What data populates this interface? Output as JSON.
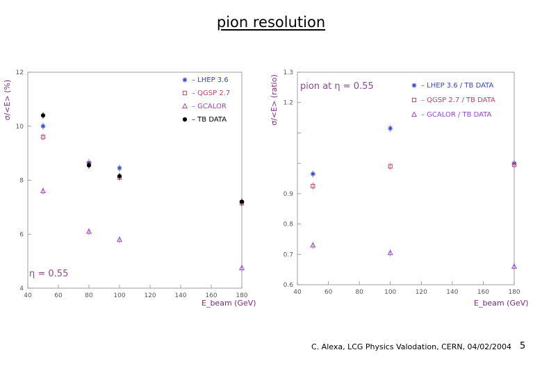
{
  "slide": {
    "title": "pion resolution",
    "footer": "C. Alexa, LCG Physics Valodation, CERN, 04/02/2004",
    "page_number": "5"
  },
  "colors": {
    "lhep": "#3344cc",
    "qgsp": "#bb4466",
    "gcalor": "#9944cc",
    "tb": "#000000",
    "axis": "#888888"
  },
  "chart_data": [
    {
      "type": "scatter",
      "title": "",
      "xlabel": "E_beam (GeV)",
      "ylabel": "σ/<E> (%)",
      "xlim": [
        40,
        180
      ],
      "ylim": [
        4,
        12
      ],
      "x_ticks": [
        "40",
        "60",
        "80",
        "100",
        "120",
        "140",
        "160",
        "180"
      ],
      "y_ticks": [
        "4",
        "6",
        "8",
        "10",
        "12"
      ],
      "grid": false,
      "legend_position": "top-right",
      "annotation": "η = 0.55",
      "series": [
        {
          "name": "* – LHEP 3.6",
          "marker": "star",
          "color_key": "lhep",
          "x": [
            50,
            80,
            100,
            180
          ],
          "y": [
            10.0,
            8.65,
            8.45,
            7.2
          ]
        },
        {
          "name": "□ – QGSP 2.7",
          "marker": "square",
          "color_key": "qgsp",
          "x": [
            50,
            80,
            100,
            180
          ],
          "y": [
            9.6,
            8.6,
            8.1,
            7.15
          ]
        },
        {
          "name": "△ – GCALOR",
          "marker": "triangle",
          "color_key": "gcalor",
          "x": [
            50,
            80,
            100,
            180
          ],
          "y": [
            7.6,
            6.1,
            5.8,
            4.75
          ]
        },
        {
          "name": "● – TB DATA",
          "marker": "dot",
          "color_key": "tb",
          "x": [
            50,
            80,
            100,
            180
          ],
          "y": [
            10.4,
            8.55,
            8.15,
            7.2
          ]
        }
      ]
    },
    {
      "type": "scatter",
      "title": "",
      "xlabel": "E_beam (GeV)",
      "ylabel": "σ/<E> (ratio)",
      "xlim": [
        40,
        180
      ],
      "ylim": [
        0.6,
        1.3
      ],
      "x_ticks": [
        "40",
        "60",
        "80",
        "100",
        "120",
        "140",
        "160",
        "180"
      ],
      "y_ticks": [
        "0.6",
        "0.7",
        "0.8",
        "0.9",
        "",
        "",
        "1.2",
        "1.3"
      ],
      "y_tick_values": [
        0.6,
        0.7,
        0.8,
        0.9,
        1.0,
        1.1,
        1.2,
        1.3
      ],
      "grid": false,
      "legend_position": "top-right",
      "annotation": "pion at η = 0.55",
      "series": [
        {
          "name": "* – LHEP 3.6 / TB DATA",
          "marker": "star",
          "color_key": "lhep",
          "x": [
            50,
            100,
            180
          ],
          "y": [
            0.965,
            1.115,
            1.0
          ]
        },
        {
          "name": "□ – QGSP 2.7 / TB DATA",
          "marker": "square",
          "color_key": "qgsp",
          "x": [
            50,
            100,
            180
          ],
          "y": [
            0.925,
            0.99,
            0.995
          ]
        },
        {
          "name": "△ – GCALOR / TB DATA",
          "marker": "triangle",
          "color_key": "gcalor",
          "x": [
            50,
            100,
            180
          ],
          "y": [
            0.73,
            0.705,
            0.66
          ]
        }
      ]
    }
  ]
}
